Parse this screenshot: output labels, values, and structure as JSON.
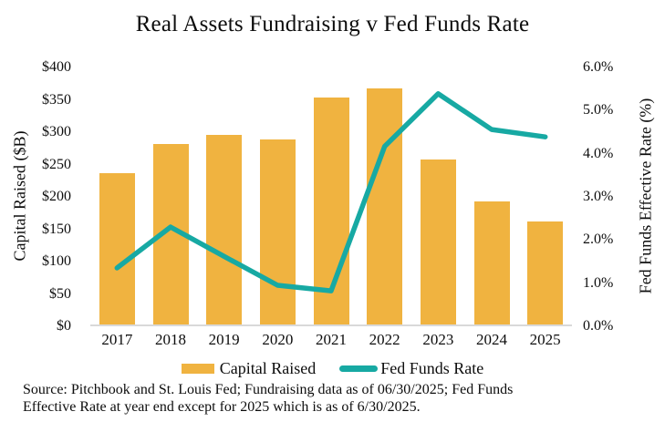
{
  "title": "Real Assets Fundraising v Fed Funds Rate",
  "source_note": {
    "lines": [
      "Source: Pitchbook and St. Louis Fed; Fundraising data as of 06/30/2025; Fed Funds",
      "Effective Rate at year end except for 2025 which is as of 6/30/2025."
    ]
  },
  "legend": [
    {
      "label": "Capital Raised",
      "swatch": "bar"
    },
    {
      "label": "Fed Funds Rate",
      "swatch": "line"
    }
  ],
  "colors": {
    "bar": "#F0B340",
    "line": "#17A9A3",
    "baseline": "#D9D9D9"
  },
  "chart_data": {
    "type": "bar+line combo",
    "title": "Real Assets Fundraising v Fed Funds Rate",
    "categories": [
      "2017",
      "2018",
      "2019",
      "2020",
      "2021",
      "2022",
      "2023",
      "2024",
      "2025"
    ],
    "series": [
      {
        "name": "Capital Raised",
        "type": "bar",
        "axis": "left",
        "color": "#F0B340",
        "values": [
          235,
          281,
          294,
          287,
          352,
          366,
          256,
          191,
          161
        ]
      },
      {
        "name": "Fed Funds Rate",
        "type": "line",
        "axis": "right",
        "color": "#17A9A3",
        "values": [
          1.33,
          2.28,
          1.6,
          0.93,
          0.8,
          4.15,
          5.37,
          4.54,
          4.37
        ]
      }
    ],
    "left_axis": {
      "label": "Capital Raised ($B)",
      "min": 0,
      "max": 400,
      "tick_labels": [
        "$400",
        "$350",
        "$300",
        "$250",
        "$200",
        "$150",
        "$100",
        "$50",
        "$0"
      ]
    },
    "right_axis": {
      "label": "Fed Funds Effective Rate (%)",
      "min": 0,
      "max": 6,
      "tick_labels": [
        "6.0%",
        "5.0%",
        "4.0%",
        "3.0%",
        "2.0%",
        "1.0%",
        "0.0%"
      ]
    },
    "x_axis": {
      "label": ""
    },
    "grid": false,
    "legend_position": "bottom"
  }
}
